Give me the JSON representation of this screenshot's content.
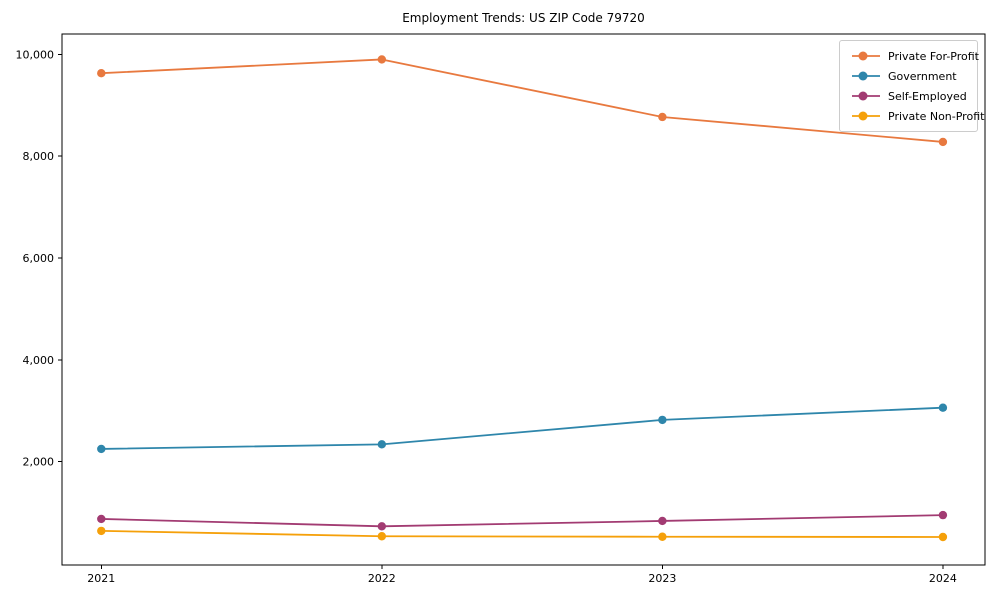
{
  "chart_data": {
    "type": "line",
    "title": "Employment Trends: US ZIP Code 79720",
    "xlabel": "",
    "ylabel": "",
    "x": [
      2021,
      2022,
      2023,
      2024
    ],
    "x_tick_labels": [
      "2021",
      "2022",
      "2023",
      "2024"
    ],
    "y_ticks": [
      2000,
      4000,
      6000,
      8000,
      10000
    ],
    "y_tick_labels": [
      "2,000",
      "4,000",
      "6,000",
      "8,000",
      "10,000"
    ],
    "xlim": [
      2020.86,
      2024.15
    ],
    "ylim": [
      -30,
      10400
    ],
    "grid": false,
    "legend_position": "upper right",
    "background_color": "#ffffff",
    "axis_color": "#000000",
    "series": [
      {
        "name": "Private For-Profit",
        "color": "#E8793F",
        "values": [
          9630,
          9900,
          8770,
          8280
        ]
      },
      {
        "name": "Government",
        "color": "#2E86AB",
        "values": [
          2250,
          2340,
          2820,
          3060
        ]
      },
      {
        "name": "Self-Employed",
        "color": "#A23B72",
        "values": [
          875,
          730,
          835,
          950
        ]
      },
      {
        "name": "Private Non-Profit",
        "color": "#F5A00A",
        "values": [
          640,
          535,
          525,
          520
        ]
      }
    ]
  }
}
